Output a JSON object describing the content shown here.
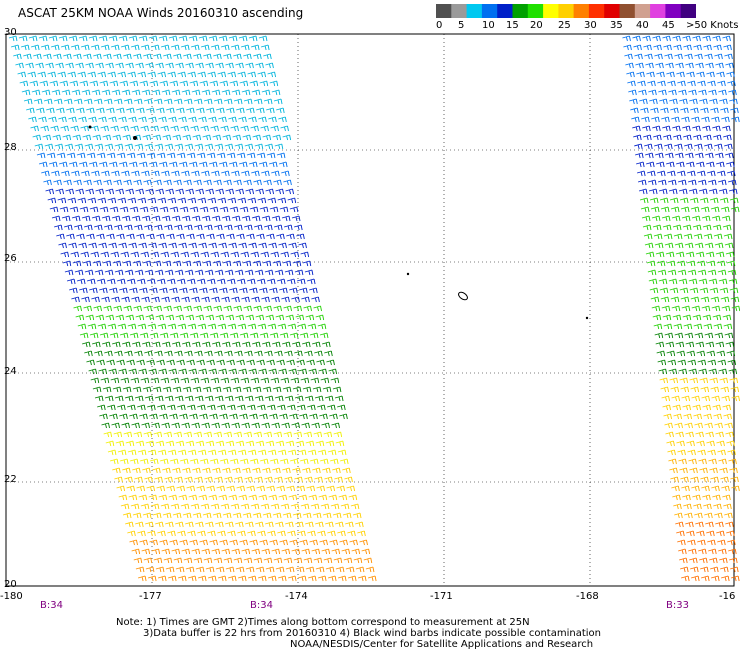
{
  "title": "ASCAT 25KM NOAA Winds 20160310 ascending",
  "colorbar": {
    "colors": [
      "#505050",
      "#9a9a9a",
      "#00c8f0",
      "#0070f0",
      "#0020c8",
      "#00a000",
      "#20e000",
      "#ffff00",
      "#ffd000",
      "#ff8000",
      "#ff3000",
      "#e00000",
      "#905030",
      "#d0a090",
      "#e040e0",
      "#8000c0",
      "#400080"
    ],
    "labels": [
      "0",
      "5",
      "10",
      "15",
      "20",
      "25",
      "30",
      "35",
      "40",
      "45",
      ">50 Knots"
    ]
  },
  "map": {
    "lat_labels": [
      "30",
      "28",
      "26",
      "24",
      "22",
      "20"
    ],
    "lon_labels": [
      "-180",
      "-177",
      "-174",
      "-171",
      "-168",
      "-16"
    ],
    "rev_labels": [
      "B:34",
      "B:34",
      "B:33"
    ]
  },
  "notes": [
    "Note: 1) Times are GMT 2)Times along bottom correspond to measurement at 25N",
    "3)Data buffer is 22 hrs from 20160310 4) Black wind barbs indicate possible contamination",
    "NOAA/NESDIS/Center for Satellite Applications and Research"
  ]
}
